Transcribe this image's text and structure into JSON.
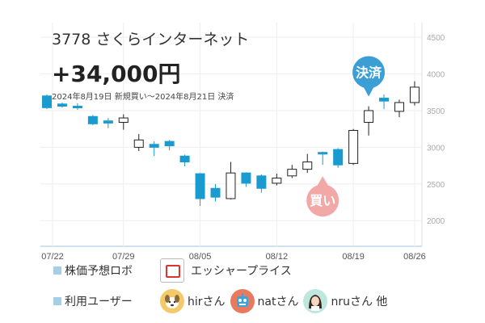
{
  "header": {
    "title": "3778 さくらインターネット",
    "profit": "+34,000円",
    "period": "2024年8月19日 新規買い〜2024年8月21日 決済"
  },
  "markers": {
    "buy": "買い",
    "settle": "決済"
  },
  "colors": {
    "bull": "#1a9bd0",
    "bear": "#222222",
    "buy": "#f3a8a8",
    "settle": "#3b9fd6"
  },
  "legend": {
    "robo_label": "株価予想ロボ",
    "robo_name": "エッシャープライス",
    "users_label": "利用ユーザー",
    "users": [
      {
        "name": "hirさん",
        "icon": "dog-icon"
      },
      {
        "name": "natさん",
        "icon": "robot-icon"
      },
      {
        "name": "nruさん 他",
        "icon": "girl-icon"
      }
    ]
  },
  "chart_data": {
    "type": "candlestick",
    "y_ticks": [
      "2000",
      "2500",
      "3000",
      "3500",
      "4000",
      "4500"
    ],
    "ylim": [
      1650,
      4700
    ],
    "x_ticks": [
      "07/22",
      "07/29",
      "08/05",
      "08/12",
      "08/19",
      "08/26"
    ],
    "grid": true,
    "candles": [
      {
        "o": 3700,
        "h": 3720,
        "l": 3520,
        "c": 3540
      },
      {
        "o": 3590,
        "h": 3610,
        "l": 3540,
        "c": 3560
      },
      {
        "o": 3560,
        "h": 3600,
        "l": 3510,
        "c": 3540
      },
      {
        "o": 3420,
        "h": 3440,
        "l": 3300,
        "c": 3320
      },
      {
        "o": 3360,
        "h": 3400,
        "l": 3260,
        "c": 3330
      },
      {
        "o": 3340,
        "h": 3450,
        "l": 3240,
        "c": 3400
      },
      {
        "o": 3000,
        "h": 3180,
        "l": 2950,
        "c": 3100
      },
      {
        "o": 3040,
        "h": 3080,
        "l": 2880,
        "c": 3000
      },
      {
        "o": 3080,
        "h": 3100,
        "l": 2960,
        "c": 3020
      },
      {
        "o": 2880,
        "h": 2900,
        "l": 2740,
        "c": 2800
      },
      {
        "o": 2640,
        "h": 2650,
        "l": 2200,
        "c": 2300
      },
      {
        "o": 2440,
        "h": 2500,
        "l": 2260,
        "c": 2320
      },
      {
        "o": 2300,
        "h": 2800,
        "l": 2290,
        "c": 2650
      },
      {
        "o": 2650,
        "h": 2660,
        "l": 2460,
        "c": 2510
      },
      {
        "o": 2610,
        "h": 2630,
        "l": 2380,
        "c": 2440
      },
      {
        "o": 2510,
        "h": 2640,
        "l": 2480,
        "c": 2580
      },
      {
        "o": 2610,
        "h": 2760,
        "l": 2580,
        "c": 2700
      },
      {
        "o": 2700,
        "h": 2910,
        "l": 2650,
        "c": 2800
      },
      {
        "o": 2930,
        "h": 2940,
        "l": 2760,
        "c": 2920
      },
      {
        "o": 2970,
        "h": 2990,
        "l": 2720,
        "c": 2760
      },
      {
        "o": 2780,
        "h": 3250,
        "l": 2760,
        "c": 3230
      },
      {
        "o": 3340,
        "h": 3560,
        "l": 3160,
        "c": 3500
      },
      {
        "o": 3670,
        "h": 3720,
        "l": 3520,
        "c": 3630
      },
      {
        "o": 3490,
        "h": 3650,
        "l": 3410,
        "c": 3610
      },
      {
        "o": 3610,
        "h": 3900,
        "l": 3570,
        "c": 3820
      }
    ]
  }
}
